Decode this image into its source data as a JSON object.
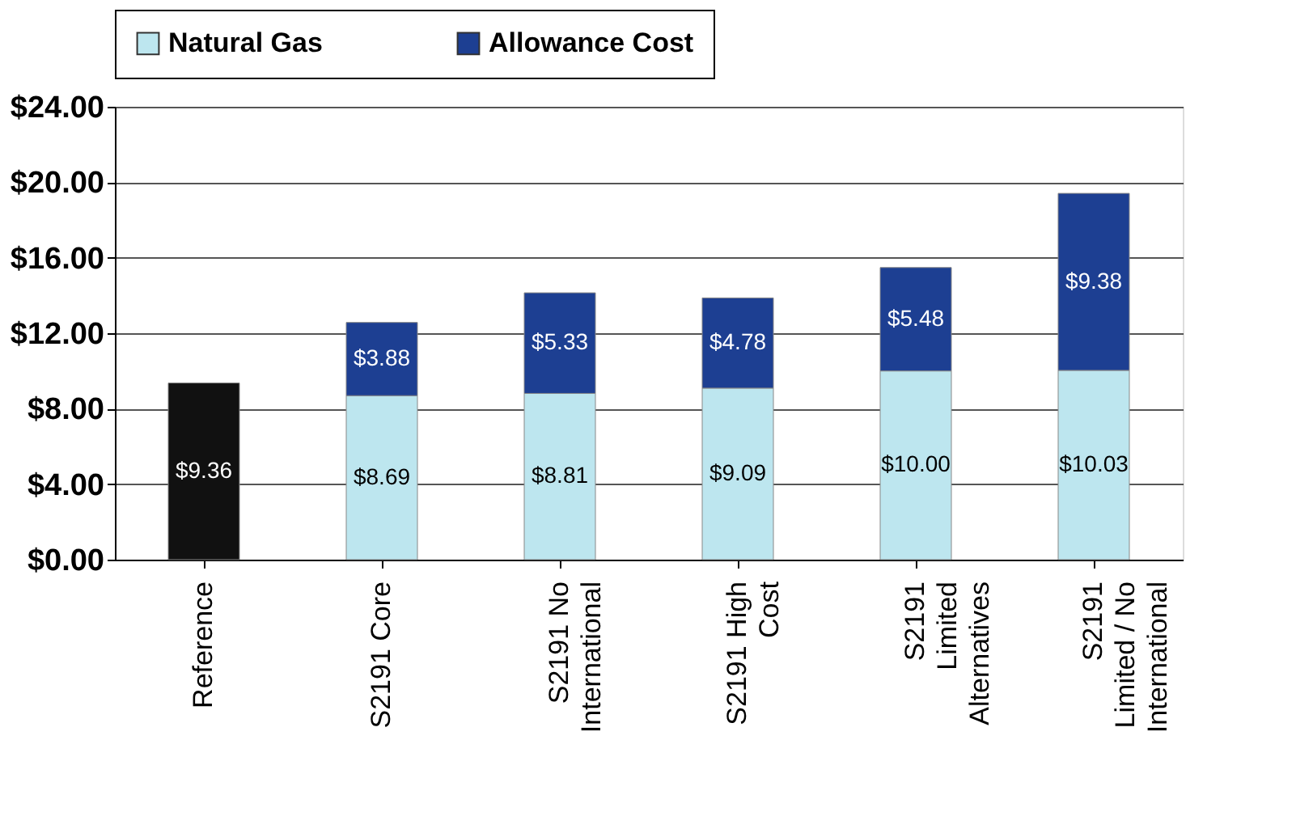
{
  "chart_data": {
    "type": "bar",
    "stacked": true,
    "categories": [
      "Reference",
      "S2191 Core",
      "S2191 No International",
      "S2191 High Cost",
      "S2191 Limited Alternatives",
      "S2191 Limited / No International"
    ],
    "series": [
      {
        "color": "#111111",
        "values": [
          9.36,
          null,
          null,
          null,
          null,
          null
        ],
        "value_labels": [
          "$9.36",
          null,
          null,
          null,
          null,
          null
        ]
      },
      {
        "name": "Natural Gas",
        "color": "#bde6ef",
        "values": [
          null,
          8.69,
          8.81,
          9.09,
          10.0,
          10.03
        ],
        "value_labels": [
          null,
          "$8.69",
          "$8.81",
          "$9.09",
          "$10.00",
          "$10.03"
        ]
      },
      {
        "name": "Allowance Cost",
        "color": "#1d3f92",
        "values": [
          null,
          3.88,
          5.33,
          4.78,
          5.48,
          9.38
        ],
        "value_labels": [
          null,
          "$3.88",
          "$5.33",
          "$4.78",
          "$5.48",
          "$9.38"
        ]
      }
    ],
    "ylim": [
      0,
      24
    ],
    "yticks": [
      {
        "value": 0,
        "label": "$0.00"
      },
      {
        "value": 4,
        "label": "$4.00"
      },
      {
        "value": 8,
        "label": "$8.00"
      },
      {
        "value": 12,
        "label": "$12.00"
      },
      {
        "value": 16,
        "label": "$16.00"
      },
      {
        "value": 20,
        "label": "$20.00"
      },
      {
        "value": 24,
        "label": "$24.00"
      }
    ],
    "grid": "y",
    "legend": "top"
  }
}
